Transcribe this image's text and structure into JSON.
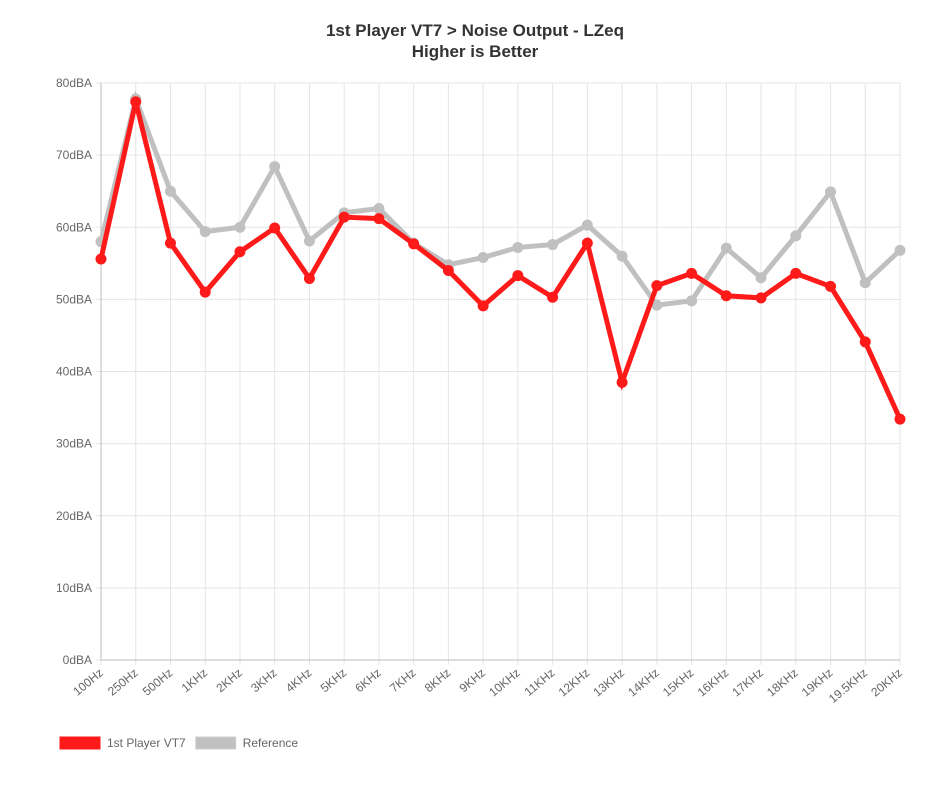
{
  "chart_data": {
    "type": "line",
    "title": "1st Player VT7 > Noise Output - LZeq",
    "subtitle": "Higher is Better",
    "xlabel": "",
    "ylabel": "",
    "categories": [
      "100Hz",
      "250Hz",
      "500Hz",
      "1KHz",
      "2KHz",
      "3KHz",
      "4KHz",
      "5KHz",
      "6KHz",
      "7KHz",
      "8KHz",
      "9KHz",
      "10KHz",
      "11KHz",
      "12KHz",
      "13KHz",
      "14KHz",
      "15KHz",
      "16KHz",
      "17KHz",
      "18KHz",
      "19KHz",
      "19.5KHz",
      "20KHz"
    ],
    "ylim": [
      0,
      80
    ],
    "yticks": [
      0,
      10,
      20,
      30,
      40,
      50,
      60,
      70,
      80
    ],
    "ytick_labels": [
      "0dBA",
      "10dBA",
      "20dBA",
      "30dBA",
      "40dBA",
      "50dBA",
      "60dBA",
      "70dBA",
      "80dBA"
    ],
    "grid": true,
    "legend_position": "bottom-left",
    "series": [
      {
        "name": "Reference",
        "color": "#c0c0c0",
        "values": [
          58.0,
          77.8,
          65.0,
          59.4,
          60.0,
          68.4,
          58.1,
          62.0,
          62.6,
          57.8,
          54.8,
          55.8,
          57.2,
          57.6,
          60.3,
          56.0,
          49.2,
          49.8,
          57.1,
          53.0,
          58.8,
          64.9,
          52.3,
          56.8
        ]
      },
      {
        "name": "1st Player VT7",
        "color": "#ff1a1a",
        "values": [
          55.6,
          77.4,
          57.8,
          51.0,
          56.6,
          59.9,
          52.9,
          61.4,
          61.2,
          57.7,
          54.0,
          49.1,
          53.3,
          50.3,
          57.8,
          38.5,
          51.9,
          53.6,
          50.5,
          50.2,
          53.6,
          51.8,
          44.1,
          33.4
        ]
      }
    ]
  }
}
